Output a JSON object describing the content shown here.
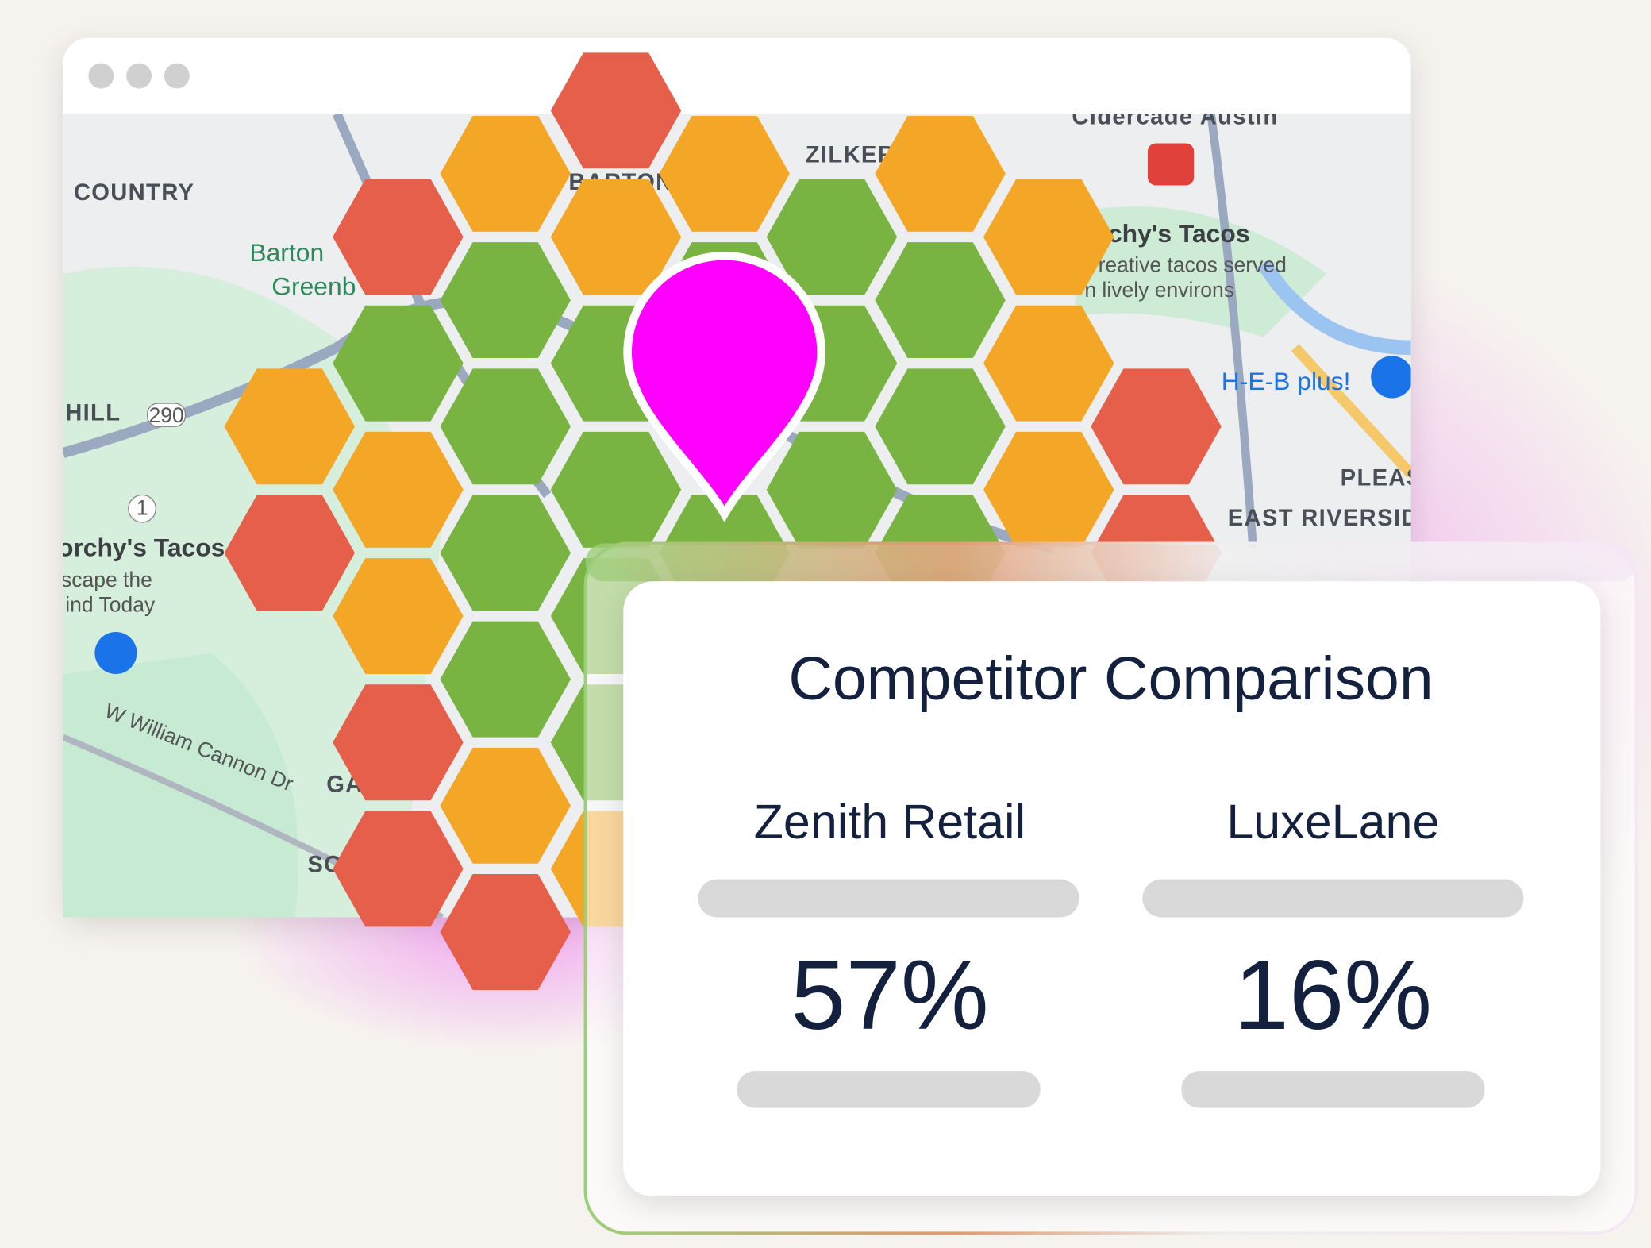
{
  "map": {
    "labels": [
      "Cidercade Austin",
      "ZILKER",
      "COUNTRY",
      "BARTON",
      "Barton",
      "Greenb",
      "HILL",
      "290",
      "1",
      "rchy's Tacos",
      "reative tacos served",
      "n lively environs",
      "H-E-B plus!",
      "PLEAS",
      "EAST RIVERSID",
      "orchy's Tacos",
      "scape the",
      "ind Today",
      "W William Cannon Dr",
      "GA",
      "SO"
    ]
  },
  "card": {
    "title": "Competitor Comparison",
    "competitors": [
      {
        "name": "Zenith Retail",
        "share": "57%"
      },
      {
        "name": "LuxeLane",
        "share": "16%"
      }
    ]
  }
}
